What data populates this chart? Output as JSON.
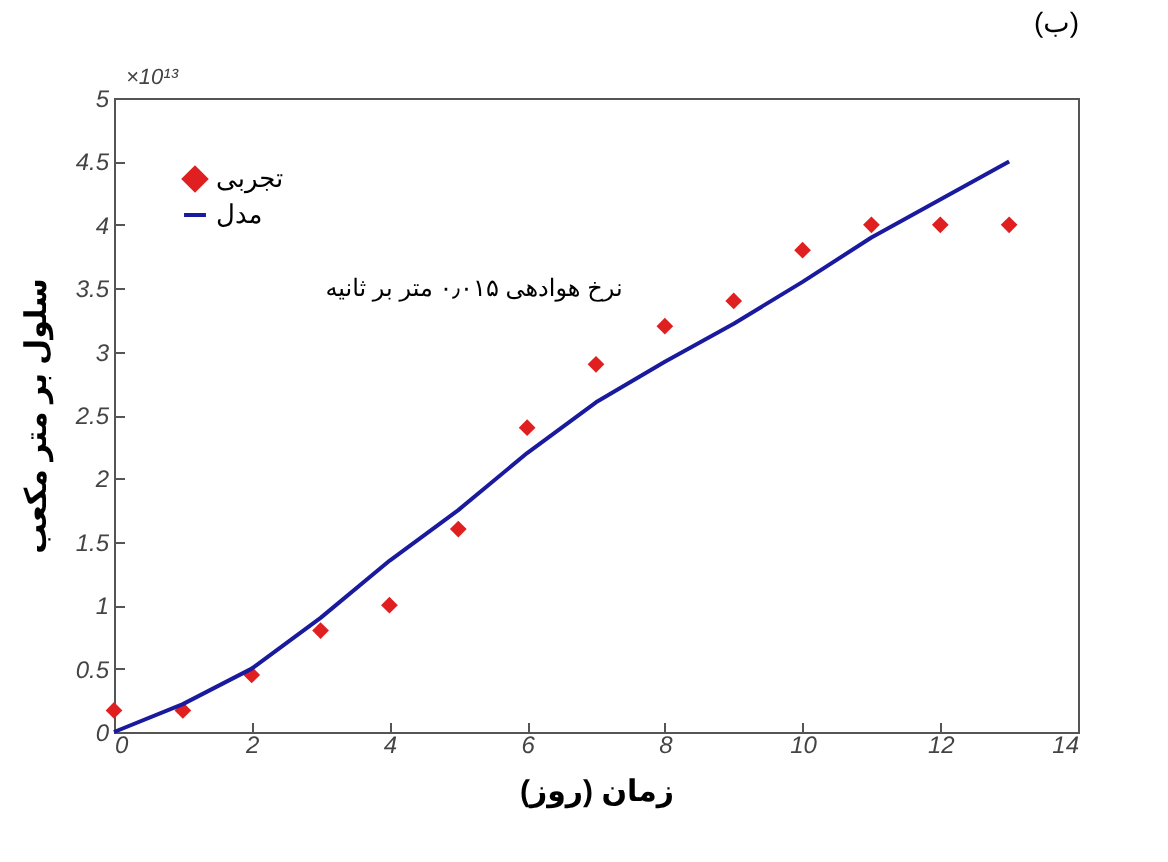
{
  "chart_data": {
    "type": "scatter",
    "title": "(ب)",
    "xlabel": "زمان (روز)",
    "ylabel": "سلول بر متر مکعب",
    "annotations": [
      "×10¹³",
      "نرخ هوادهی ۰٫۰۱۵ متر بر ثانیه"
    ],
    "xlim": [
      0,
      14
    ],
    "xticks": [
      0,
      2,
      4,
      6,
      8,
      10,
      12,
      14
    ],
    "ylim": [
      0,
      5
    ],
    "yticks": [
      0,
      0.5,
      1,
      1.5,
      2,
      2.5,
      3,
      3.5,
      4,
      4.5,
      5
    ],
    "grid": false,
    "legend": "top left",
    "series": [
      {
        "name": "تجربی",
        "marker": "diamond",
        "color": "#e02020",
        "x": [
          0,
          1,
          2,
          3,
          4,
          5,
          6,
          7,
          8,
          9,
          10,
          11,
          12,
          13
        ],
        "values": [
          0.17,
          0.17,
          0.45,
          0.8,
          1.0,
          1.6,
          2.4,
          2.9,
          3.2,
          3.4,
          3.8,
          4.0,
          4.0,
          4.0
        ]
      },
      {
        "name": "مدل",
        "type": "line",
        "color": "#1a1a9e",
        "x": [
          0,
          1,
          2,
          3,
          4,
          5,
          6,
          7,
          8,
          9,
          10,
          11,
          12,
          13
        ],
        "values": [
          0,
          0.22,
          0.5,
          0.9,
          1.35,
          1.75,
          2.2,
          2.6,
          2.92,
          3.22,
          3.55,
          3.9,
          4.2,
          4.5
        ]
      }
    ]
  }
}
